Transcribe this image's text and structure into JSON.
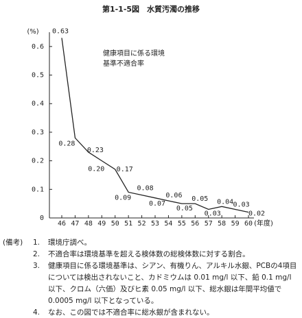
{
  "chart_data": {
    "type": "line",
    "title": "第1-1-5図　水質汚濁の推移",
    "y_label": "(%)",
    "x_label": "(年度)",
    "annotation": [
      "健康項目に係る環境",
      "基準不適合率"
    ],
    "categories": [
      "46",
      "47",
      "48",
      "49",
      "50",
      "51",
      "52",
      "53",
      "54",
      "55",
      "56",
      "57",
      "58",
      "59",
      "60"
    ],
    "values": [
      0.63,
      0.28,
      0.23,
      0.2,
      0.17,
      0.09,
      0.08,
      0.07,
      0.06,
      0.05,
      0.05,
      0.03,
      0.04,
      0.03,
      0.02
    ],
    "value_labels": [
      "0.63",
      "0.28",
      "0.23",
      "0.20",
      "0.17",
      "0.09",
      "0.08",
      "0.07",
      "0.06",
      "0.05",
      "0.05",
      "0.03",
      "0.04",
      "0.03",
      "0.02"
    ],
    "color": "#222222",
    "ylim": [
      0,
      0.65
    ],
    "yticks": [
      0,
      0.1,
      0.2,
      0.3,
      0.4,
      0.5,
      0.6
    ]
  },
  "notes": {
    "heading": "(備考)",
    "items": [
      {
        "number": "1.",
        "text": "環境庁調べ。"
      },
      {
        "number": "2.",
        "text": "不適合率は環境基準を超える検体数の総検体数に対する割合。"
      },
      {
        "number": "3.",
        "text": "健康項目に係る環境基準は、シアン、有機りん、アルキル水銀、PCBの4項目については検出されないこと、カドミウムは 0.01 mg/l 以下、鉛 0.1 mg/l 以下、クロム（六価）及びヒ素 0.05 mg/l 以下、総水銀は年間平均値で 0.0005 mg/l 以下となっている。"
      },
      {
        "number": "4.",
        "text": "なお、この図では不適合率に総水銀が含まれない。"
      }
    ]
  }
}
